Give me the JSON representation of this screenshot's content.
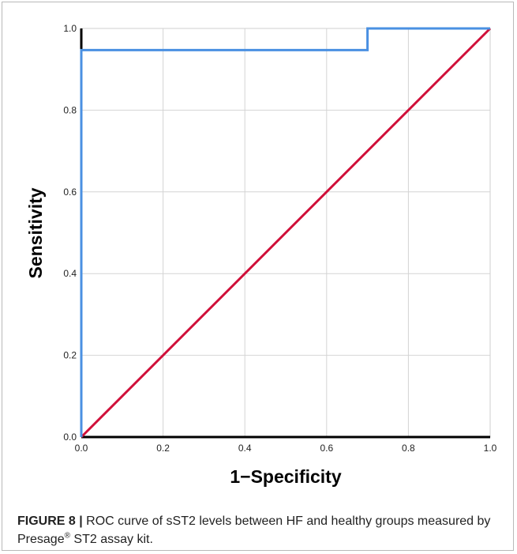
{
  "chart_data": {
    "type": "line",
    "xlabel": "1−Specificity",
    "ylabel": "Sensitivity",
    "xlim": [
      0,
      1
    ],
    "ylim": [
      0,
      1
    ],
    "xticks": [
      "0.0",
      "0.2",
      "0.4",
      "0.6",
      "0.8",
      "1.0"
    ],
    "yticks": [
      "0.0",
      "0.2",
      "0.4",
      "0.6",
      "0.8",
      "1.0"
    ],
    "grid": true,
    "series": [
      {
        "color": "#4a90e2",
        "x": [
          0,
          0,
          0.7,
          0.7,
          1.0
        ],
        "y": [
          0,
          0.947,
          0.947,
          1.0,
          1.0
        ]
      },
      {
        "color": "#d0103a",
        "x": [
          0,
          1
        ],
        "y": [
          0,
          1
        ]
      }
    ]
  },
  "caption": {
    "label": "FIGURE 8 |",
    "text_before": " ROC curve of sST2 levels between HF and healthy groups measured by Presage",
    "registered_mark": "®",
    "text_after": " ST2 assay kit."
  }
}
